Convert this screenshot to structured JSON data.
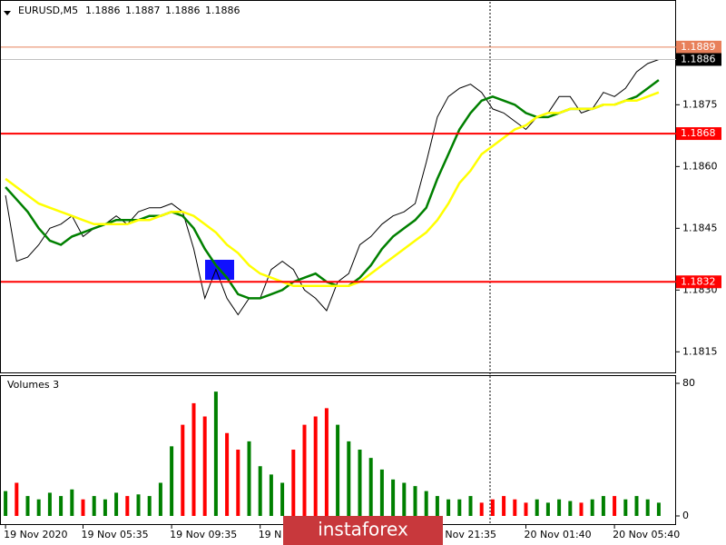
{
  "chart_data": [
    {
      "type": "line",
      "title": "EURUSD,M5",
      "ohlc": [
        1.1886,
        1.1887,
        1.1886,
        1.1886
      ],
      "ylim": [
        1.181,
        1.19
      ],
      "yticks": [
        1.1815,
        {
          "value": 1.183,
          "label": "1.1830"
        },
        1.1845,
        {
          "value": 1.186,
          "label": "1.1860"
        },
        1.1875
      ],
      "levels": [
        {
          "value": 1.1889,
          "color": "#e8805a"
        },
        {
          "value": 1.1868,
          "color": "#ff0000"
        },
        {
          "value": 1.1832,
          "color": "#ff0000"
        }
      ],
      "current_price": 1.1886,
      "series": [
        {
          "color": "#000000",
          "values": [
            1.1853,
            1.1837,
            1.1838,
            1.1841,
            1.1845,
            1.1846,
            1.1848,
            1.1843,
            1.1845,
            1.1846,
            1.1848,
            1.1846,
            1.1849,
            1.185,
            1.185,
            1.1851,
            1.1849,
            1.184,
            1.1828,
            1.1835,
            1.1828,
            1.1824,
            1.1828,
            1.1828,
            1.1835,
            1.1837,
            1.1835,
            1.183,
            1.1828,
            1.1825,
            1.1832,
            1.1834,
            1.1841,
            1.1843,
            1.1846,
            1.1848,
            1.1849,
            1.1851,
            1.1861,
            1.1872,
            1.1877,
            1.1879,
            1.188,
            1.1878,
            1.1874,
            1.1873,
            1.1871,
            1.1869,
            1.1872,
            1.1873,
            1.1877,
            1.1877,
            1.1873,
            1.1874,
            1.1878,
            1.1877,
            1.1879,
            1.1883,
            1.1885,
            1.1886
          ]
        },
        {
          "color": "#008000",
          "values": [
            1.1855,
            1.1852,
            1.1849,
            1.1845,
            1.1842,
            1.1841,
            1.1843,
            1.1844,
            1.1845,
            1.1846,
            1.1847,
            1.1847,
            1.1847,
            1.1848,
            1.1848,
            1.1849,
            1.1848,
            1.1845,
            1.184,
            1.1836,
            1.1833,
            1.1829,
            1.1828,
            1.1828,
            1.1829,
            1.183,
            1.1832,
            1.1833,
            1.1834,
            1.1832,
            1.1831,
            1.1831,
            1.1833,
            1.1836,
            1.184,
            1.1843,
            1.1845,
            1.1847,
            1.185,
            1.1857,
            1.1863,
            1.1869,
            1.1873,
            1.1876,
            1.1877,
            1.1876,
            1.1875,
            1.1873,
            1.1872,
            1.1872,
            1.1873,
            1.1874,
            1.1874,
            1.1874,
            1.1875,
            1.1875,
            1.1876,
            1.1877,
            1.1879,
            1.1881
          ]
        },
        {
          "color": "#ffff00",
          "values": [
            1.1857,
            1.1855,
            1.1853,
            1.1851,
            1.185,
            1.1849,
            1.1848,
            1.1847,
            1.1846,
            1.1846,
            1.1846,
            1.1846,
            1.1847,
            1.1847,
            1.1848,
            1.1849,
            1.1849,
            1.1848,
            1.1846,
            1.1844,
            1.1841,
            1.1839,
            1.1836,
            1.1834,
            1.1833,
            1.1832,
            1.1831,
            1.1831,
            1.1831,
            1.1831,
            1.1831,
            1.1831,
            1.1832,
            1.1834,
            1.1836,
            1.1838,
            1.184,
            1.1842,
            1.1844,
            1.1847,
            1.1851,
            1.1856,
            1.1859,
            1.1863,
            1.1865,
            1.1867,
            1.1869,
            1.187,
            1.1872,
            1.1873,
            1.1873,
            1.1874,
            1.1874,
            1.1874,
            1.1875,
            1.1875,
            1.1876,
            1.1876,
            1.1877,
            1.1878
          ]
        }
      ]
    },
    {
      "type": "bar",
      "title": "Volumes 3",
      "ylim": [
        0,
        80
      ],
      "yticks": [
        0,
        80
      ],
      "up_color": "#008000",
      "down_color": "#ff0000",
      "categories": [
        "19 Nov 2020",
        null,
        null,
        null,
        null,
        null,
        null,
        "19 Nov 05:35",
        null,
        null,
        null,
        null,
        null,
        null,
        null,
        "19 Nov 09:35",
        null,
        null,
        null,
        null,
        null,
        null,
        null,
        "19 N",
        null,
        null,
        null,
        null,
        null,
        null,
        null,
        null,
        null,
        null,
        null,
        null,
        null,
        null,
        null,
        "9 Nov 21:35",
        null,
        null,
        null,
        null,
        null,
        null,
        null,
        "20 Nov 01:40",
        null,
        null,
        null,
        null,
        null,
        null,
        null,
        "20 Nov 05:40",
        null,
        null,
        null,
        null
      ],
      "values": [
        15,
        20,
        12,
        10,
        14,
        12,
        16,
        10,
        12,
        10,
        14,
        12,
        13,
        12,
        20,
        42,
        55,
        68,
        60,
        75,
        50,
        40,
        45,
        30,
        25,
        20,
        40,
        55,
        60,
        65,
        55,
        45,
        40,
        35,
        28,
        22,
        20,
        18,
        15,
        12,
        10,
        10,
        12,
        8,
        10,
        12,
        10,
        8,
        10,
        8,
        10,
        9,
        8,
        10,
        12,
        12,
        10,
        12,
        10,
        8
      ]
    },
    {
      "watermark": "instaforex"
    }
  ]
}
